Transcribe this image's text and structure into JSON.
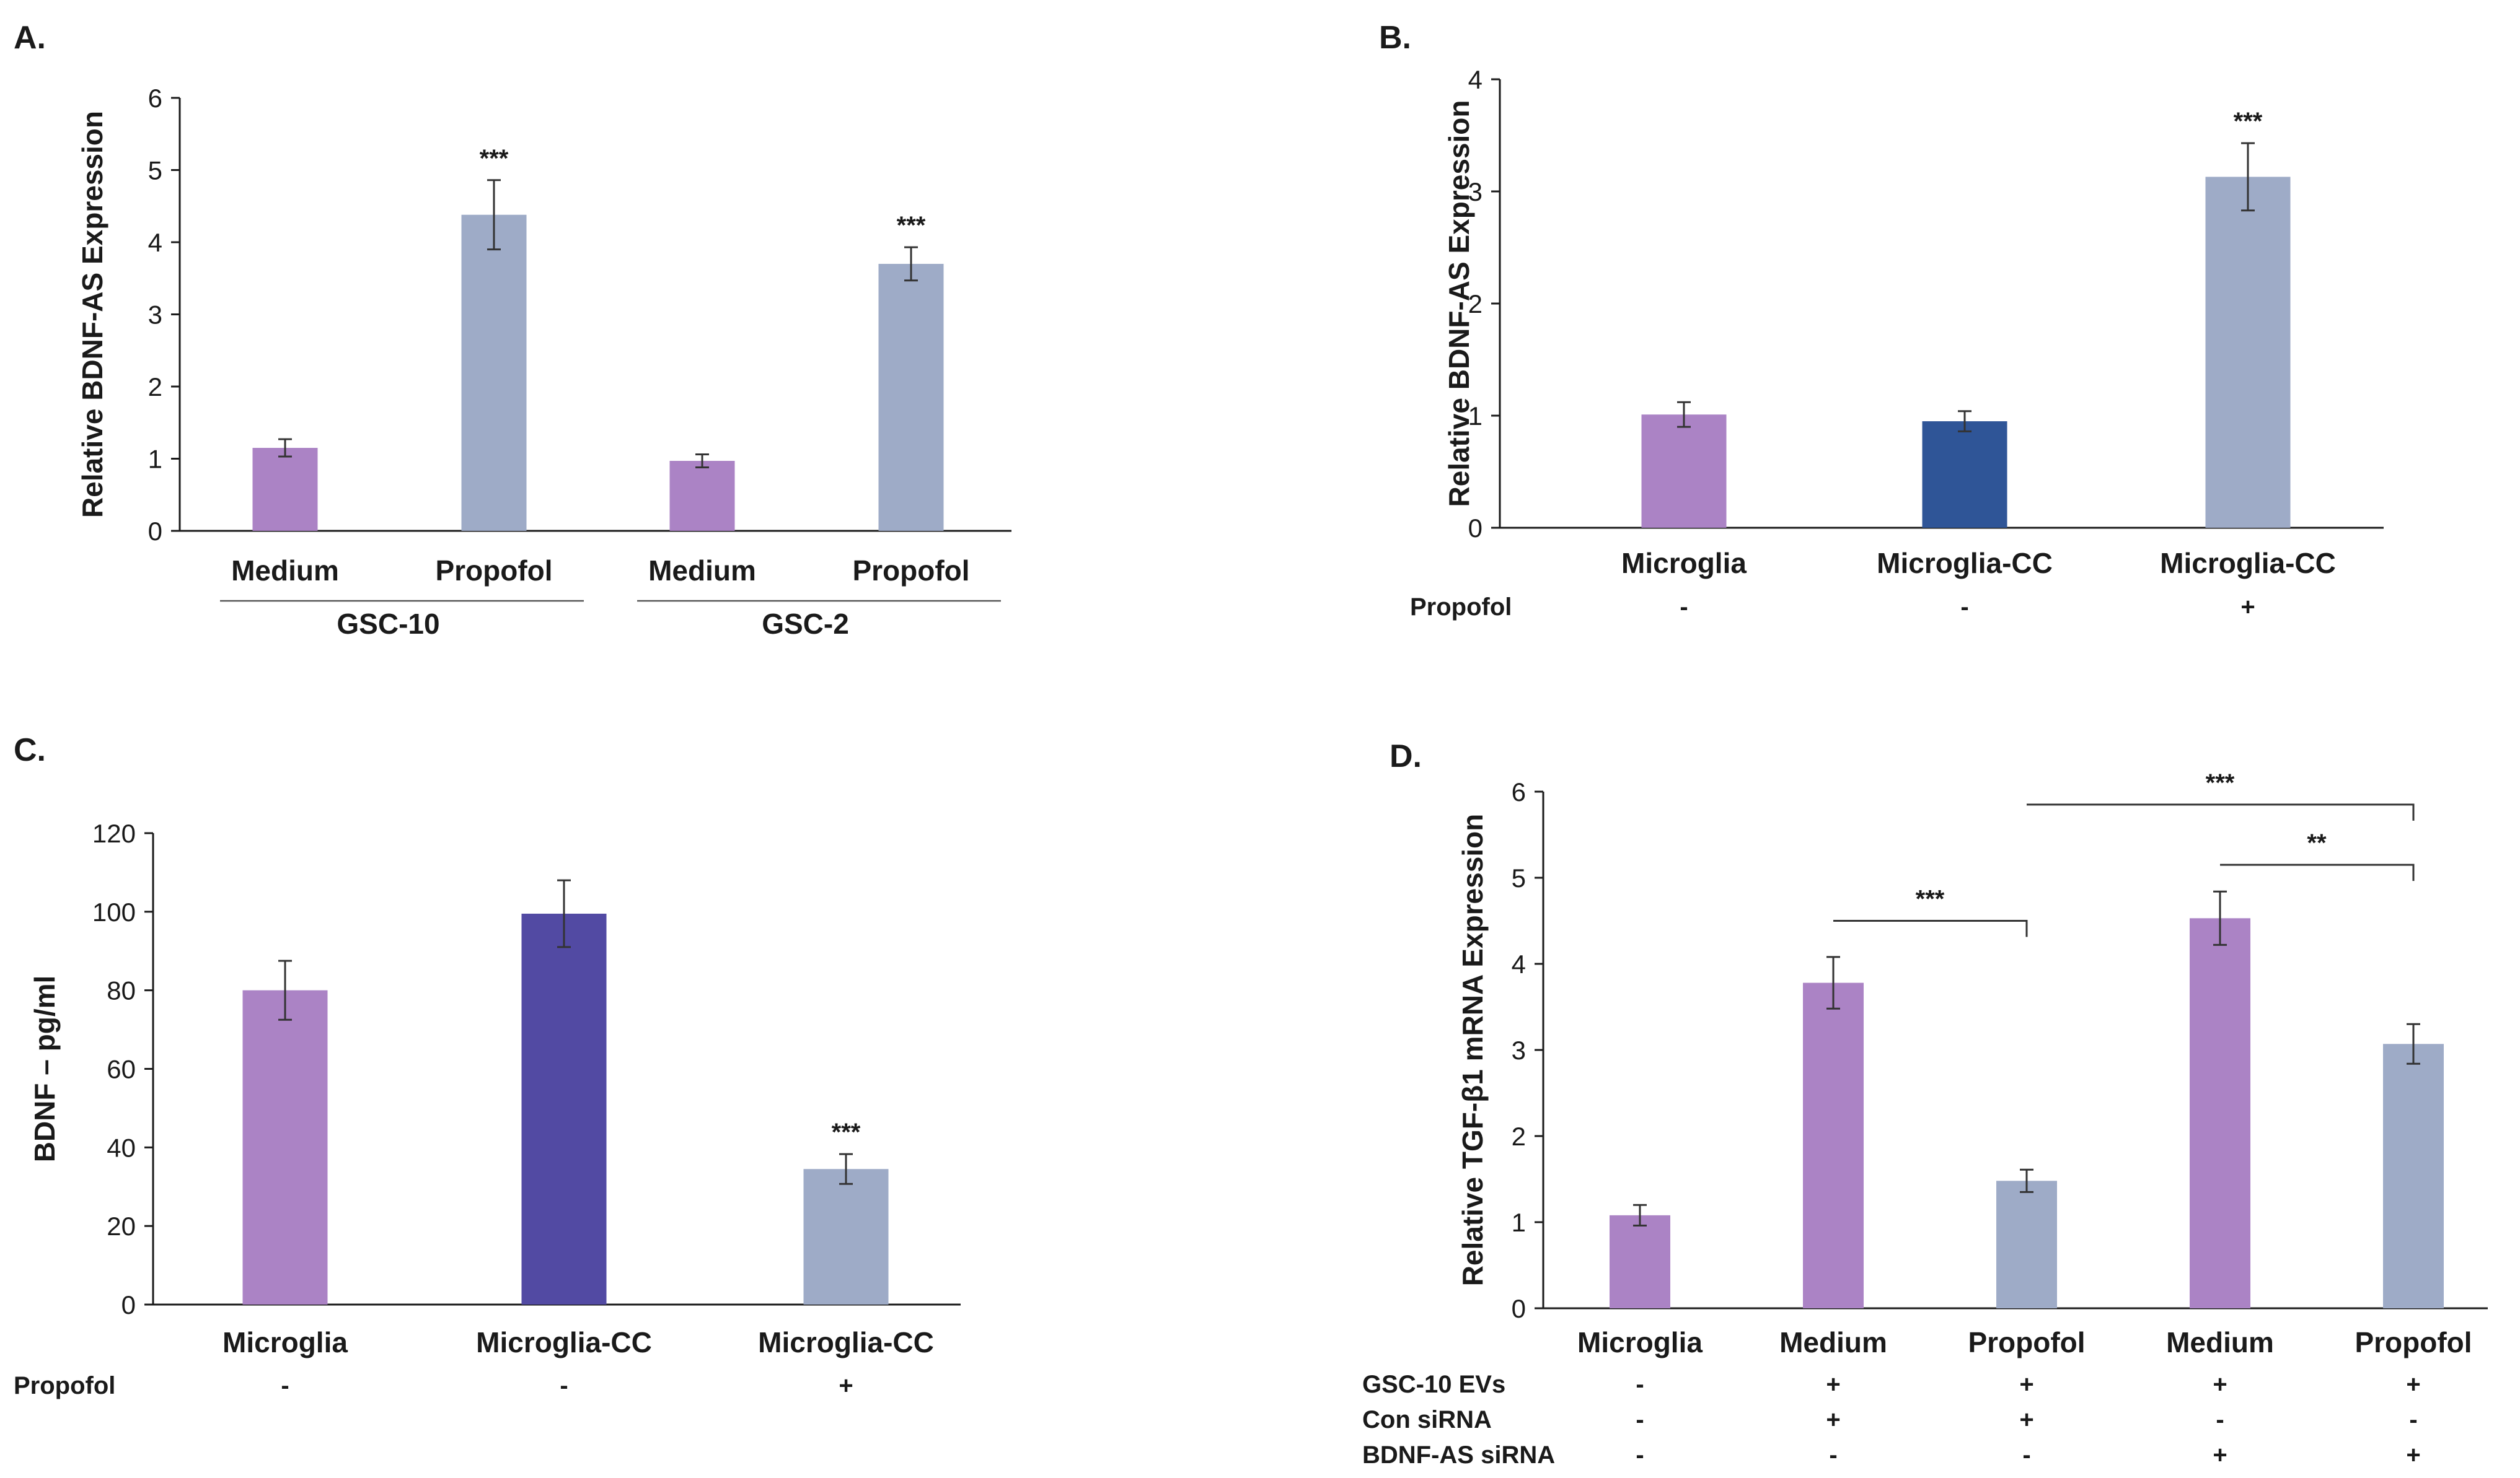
{
  "chart_data": [
    {
      "id": "A",
      "panel_label": "A.",
      "type": "bar",
      "ylabel": "Relative BDNF-AS Expression",
      "ylim": [
        0,
        6
      ],
      "yticks": [
        0,
        1,
        2,
        3,
        4,
        5,
        6
      ],
      "categories": [
        "Medium",
        "Propofol",
        "Medium",
        "Propofol"
      ],
      "values": [
        1.15,
        4.38,
        0.97,
        3.7
      ],
      "errors": [
        0.12,
        0.48,
        0.09,
        0.23
      ],
      "colors": [
        "#ab83c5",
        "#9eabc7",
        "#ab83c5",
        "#9eabc7"
      ],
      "annotations": [
        "",
        "***",
        "",
        "***"
      ],
      "groups": [
        {
          "label": "GSC-10",
          "from": 0,
          "to": 1
        },
        {
          "label": "GSC-2",
          "from": 2,
          "to": 3
        }
      ]
    },
    {
      "id": "B",
      "panel_label": "B.",
      "type": "bar",
      "ylabel": "Relative BDNF-AS Expression",
      "ylim": [
        0,
        4
      ],
      "yticks": [
        0,
        1,
        2,
        3,
        4
      ],
      "categories": [
        "Microglia",
        "Microglia-CC",
        "Microglia-CC"
      ],
      "values": [
        1.01,
        0.95,
        3.13
      ],
      "errors": [
        0.11,
        0.09,
        0.3
      ],
      "colors": [
        "#ab83c5",
        "#2f5597",
        "#9eabc7"
      ],
      "annotations": [
        "",
        "",
        "***"
      ],
      "condition_rows": [
        {
          "label": "Propofol",
          "values": [
            "-",
            "-",
            "+"
          ]
        }
      ]
    },
    {
      "id": "C",
      "panel_label": "C.",
      "type": "bar",
      "ylabel": "BDNF – pg/ml",
      "ylim": [
        0,
        120
      ],
      "yticks": [
        0,
        20,
        40,
        60,
        80,
        100,
        120
      ],
      "categories": [
        "Microglia",
        "Microglia-CC",
        "Microglia-CC"
      ],
      "values": [
        80,
        99.5,
        34.5
      ],
      "errors": [
        7.5,
        8.5,
        3.8
      ],
      "colors": [
        "#ab83c5",
        "#524aa3",
        "#9eabc7"
      ],
      "annotations": [
        "",
        "",
        "***"
      ],
      "condition_rows": [
        {
          "label": "Propofol",
          "values": [
            "-",
            "-",
            "+"
          ]
        }
      ]
    },
    {
      "id": "D",
      "panel_label": "D.",
      "type": "bar",
      "ylabel": "Relative TGF-β1 mRNA Expression",
      "ylim": [
        0,
        6
      ],
      "yticks": [
        0,
        1,
        2,
        3,
        4,
        5,
        6
      ],
      "categories": [
        "Microglia",
        "Medium",
        "Propofol",
        "Medium",
        "Propofol"
      ],
      "values": [
        1.08,
        3.78,
        1.48,
        4.53,
        3.07
      ],
      "errors": [
        0.12,
        0.3,
        0.13,
        0.31,
        0.23
      ],
      "colors": [
        "#ab83c5",
        "#ab83c5",
        "#9eabc7",
        "#ab83c5",
        "#9eabc7"
      ],
      "annotations": [
        "",
        "",
        "",
        "",
        ""
      ],
      "condition_rows": [
        {
          "label": "GSC-10 EVs",
          "values": [
            "-",
            "+",
            "+",
            "+",
            "+"
          ]
        },
        {
          "label": "Con siRNA",
          "values": [
            "-",
            "+",
            "+",
            "-",
            "-"
          ]
        },
        {
          "label": "BDNF-AS siRNA",
          "values": [
            "-",
            "-",
            "-",
            "+",
            "+"
          ]
        }
      ],
      "comparisons": [
        {
          "from": 1,
          "to": 2,
          "label": "***",
          "y": 4.5
        },
        {
          "from": 3,
          "to": 4,
          "label": "**",
          "y": 5.15
        },
        {
          "from": 2,
          "to": 4,
          "label": "***",
          "y": 5.85
        }
      ]
    }
  ]
}
